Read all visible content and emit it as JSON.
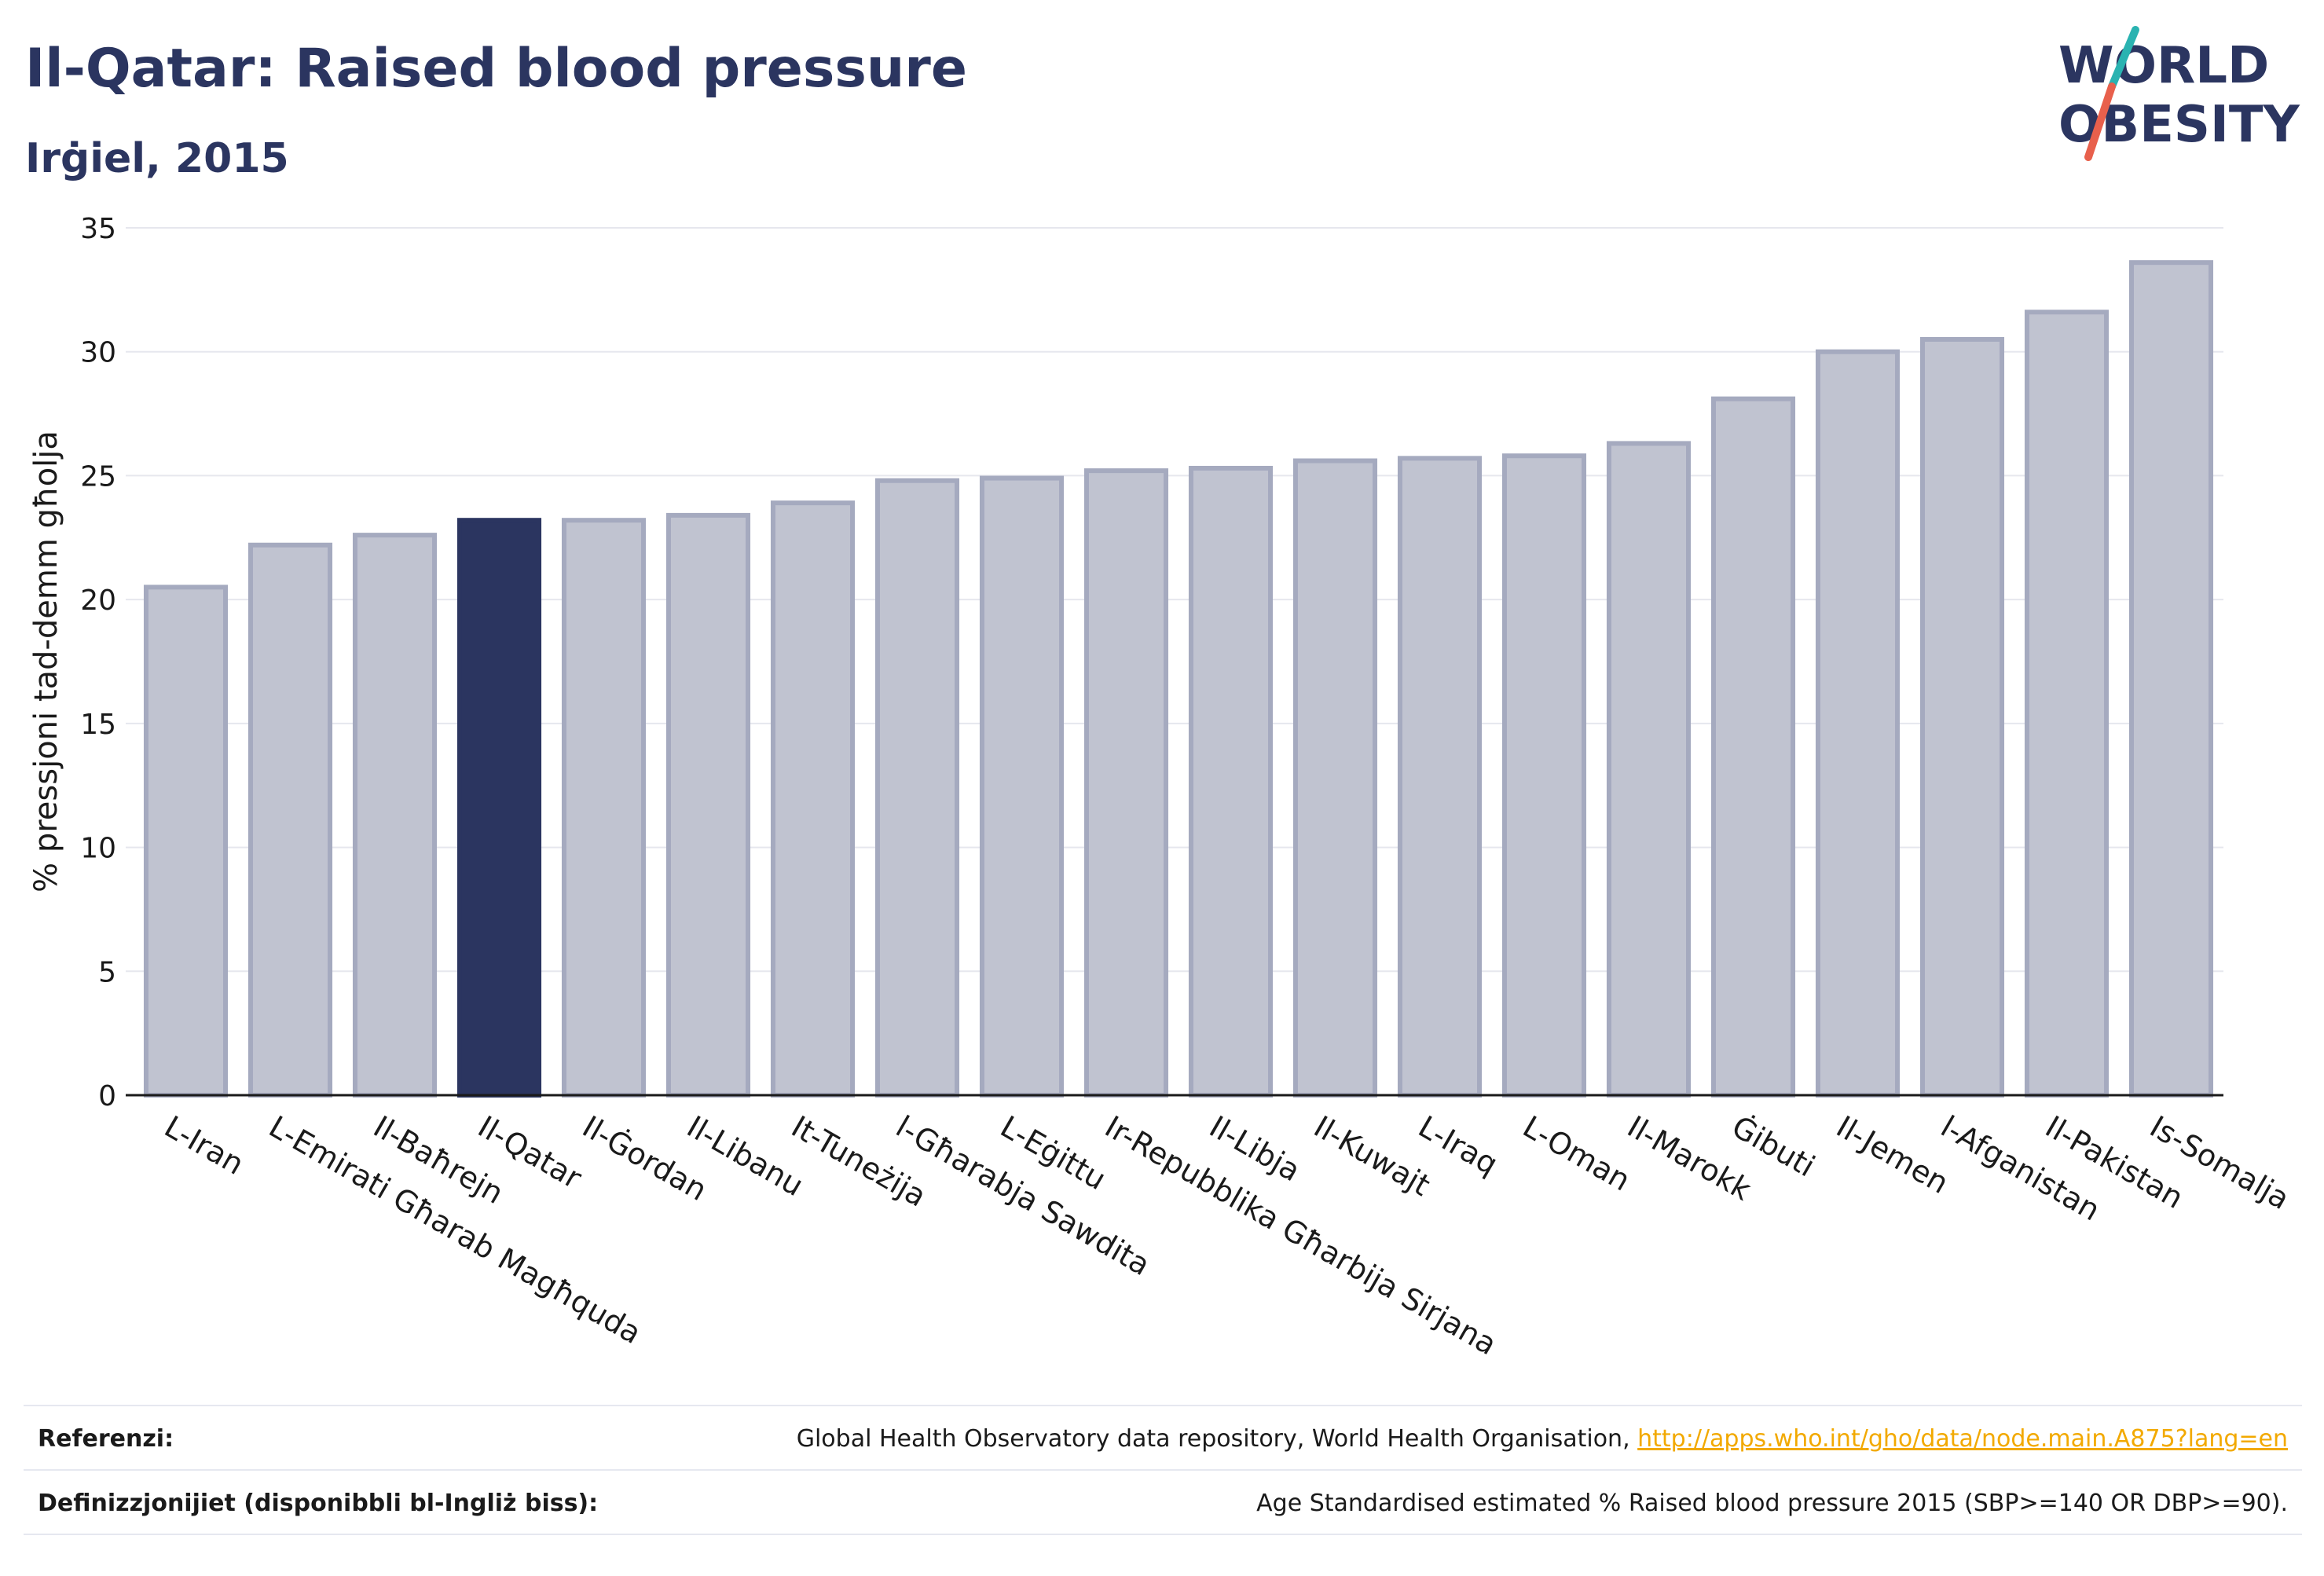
{
  "header": {
    "title": "Il-Qatar: Raised blood pressure",
    "subtitle": "Irġiel, 2015"
  },
  "logo": {
    "line1": "WORLD",
    "line2": "OBESITY",
    "colors": {
      "text": "#2b3560",
      "slash_teal": "#2ab3b1",
      "slash_red": "#e8604c"
    }
  },
  "chart_data": {
    "type": "bar",
    "ylabel": "% pressjoni tad-demm għolja",
    "xlabel": "",
    "ylim": [
      0,
      35
    ],
    "yticks": [
      0,
      5,
      10,
      15,
      20,
      25,
      30,
      35
    ],
    "grid": true,
    "highlight": "Il-Qatar",
    "colors": {
      "bar": "#c0c3d0",
      "bar_border": "#a5aabf",
      "highlight": "#2b3560",
      "grid": "#e6e7ee"
    },
    "categories": [
      "L-Iran",
      "L-Emirati Għarab Magħquda",
      "Il-Baħrejn",
      "Il-Qatar",
      "Il-Ġordan",
      "Il-Libanu",
      "It-Tuneżija",
      "l-Għarabja Sawdita",
      "L-Eġittu",
      "Ir-Repubblika Għarbija Sirjana",
      "Il-Libja",
      "Il-Kuwajt",
      "L-Iraq",
      "L-Oman",
      "Il-Marokk",
      "Ġibuti",
      "Il-Jemen",
      "l-Afganistan",
      "Il-Pakistan",
      "Is-Somalja"
    ],
    "values": [
      20.5,
      22.2,
      22.6,
      23.2,
      23.2,
      23.4,
      23.9,
      24.8,
      24.9,
      25.2,
      25.3,
      25.6,
      25.7,
      25.8,
      26.3,
      28.1,
      30.0,
      30.5,
      31.6,
      33.6
    ]
  },
  "footer": {
    "references_label": "Referenzi:",
    "references_text": "Global Health Observatory data repository, World Health Organisation, ",
    "references_link": "http://apps.who.int/gho/data/node.main.A875?lang=en",
    "definitions_label": "Definizzjonijiet (disponibbli bl-Ingliż biss):",
    "definitions_text": "Age Standardised estimated % Raised blood pressure 2015 (SBP>=140 OR DBP>=90)."
  }
}
